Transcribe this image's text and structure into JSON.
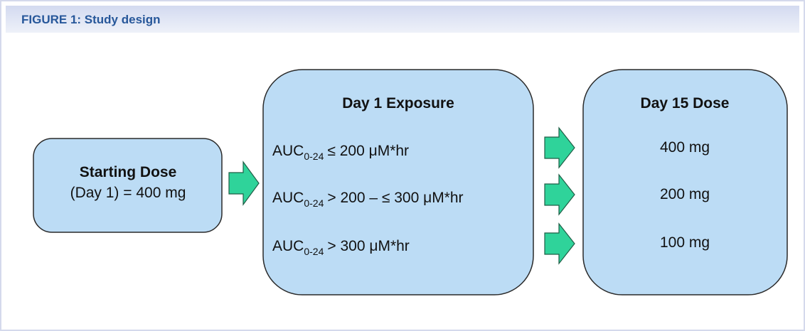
{
  "header": {
    "title": "FIGURE 1: Study design"
  },
  "nodes": [
    {
      "title": "Starting Dose",
      "text": "(Day 1) = 400 mg"
    },
    {
      "title": "Day 1 Exposure",
      "rows": [
        {
          "label": "AUC",
          "subscript": "0-24",
          "condition": "≤ 200 μM*hr"
        },
        {
          "label": "AUC",
          "subscript": "0-24",
          "condition": "> 200 – ≤ 300 μM*hr"
        },
        {
          "label": "AUC",
          "subscript": "0-24",
          "condition": "> 300 μM*hr"
        }
      ]
    },
    {
      "title": "Day 15 Dose",
      "rows": [
        "400 mg",
        "200 mg",
        "100 mg"
      ]
    }
  ]
}
